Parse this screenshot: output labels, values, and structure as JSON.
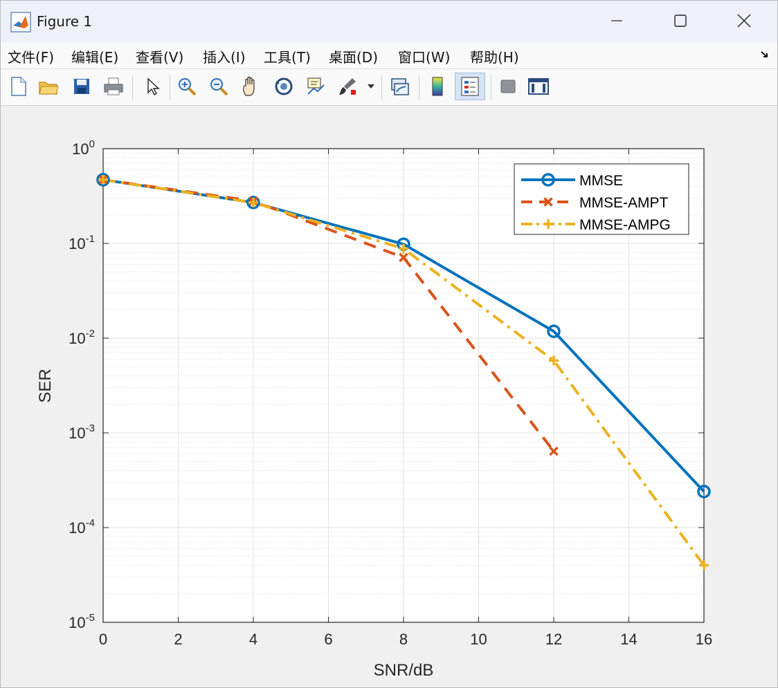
{
  "window": {
    "title": "Figure 1"
  },
  "menu": [
    "文件(F)",
    "编辑(E)",
    "查看(V)",
    "插入(I)",
    "工具(T)",
    "桌面(D)",
    "窗口(W)",
    "帮助(H)"
  ],
  "toolbar": [
    "new-figure-icon",
    "open-file-icon",
    "save-icon",
    "print-icon",
    "pointer-icon",
    "zoom-in-icon",
    "zoom-out-icon",
    "pan-icon",
    "rotate-3d-icon",
    "data-cursor-icon",
    "brush-icon",
    "link-plot-icon",
    "colorbar-icon",
    "legend-icon",
    "hide-plot-tools-icon",
    "show-plot-tools-icon"
  ],
  "colors": {
    "mmse": "#0072bd",
    "ampt": "#d95319",
    "ampg": "#edb120"
  },
  "chart_data": {
    "type": "line",
    "xlabel": "SNR/dB",
    "ylabel": "SER",
    "xlim": [
      0,
      16
    ],
    "ylim": [
      1e-05,
      1
    ],
    "yscale": "log",
    "grid": true,
    "minor_grid": true,
    "legend_position": "top-right",
    "x_ticks": [
      "0",
      "2",
      "4",
      "6",
      "8",
      "10",
      "12",
      "14",
      "16"
    ],
    "y_ticks": [
      {
        "base": "10",
        "exp": "0"
      },
      {
        "base": "10",
        "exp": "-1"
      },
      {
        "base": "10",
        "exp": "-2"
      },
      {
        "base": "10",
        "exp": "-3"
      },
      {
        "base": "10",
        "exp": "-4"
      },
      {
        "base": "10",
        "exp": "-5"
      }
    ],
    "series": [
      {
        "name": "MMSE",
        "marker": "o",
        "line": "solid",
        "color": "#0072bd",
        "x": [
          0,
          4,
          8,
          12,
          16
        ],
        "y": [
          0.47,
          0.27,
          0.098,
          0.0118,
          0.00024
        ]
      },
      {
        "name": "MMSE-AMPT",
        "marker": "x",
        "line": "dashed",
        "color": "#d95319",
        "x": [
          0,
          4,
          8,
          12
        ],
        "y": [
          0.47,
          0.28,
          0.071,
          0.00064
        ]
      },
      {
        "name": "MMSE-AMPG",
        "marker": "+",
        "line": "dashdot",
        "color": "#edb120",
        "x": [
          0,
          4,
          8,
          12,
          16
        ],
        "y": [
          0.47,
          0.27,
          0.088,
          0.0058,
          4e-05
        ]
      }
    ]
  }
}
